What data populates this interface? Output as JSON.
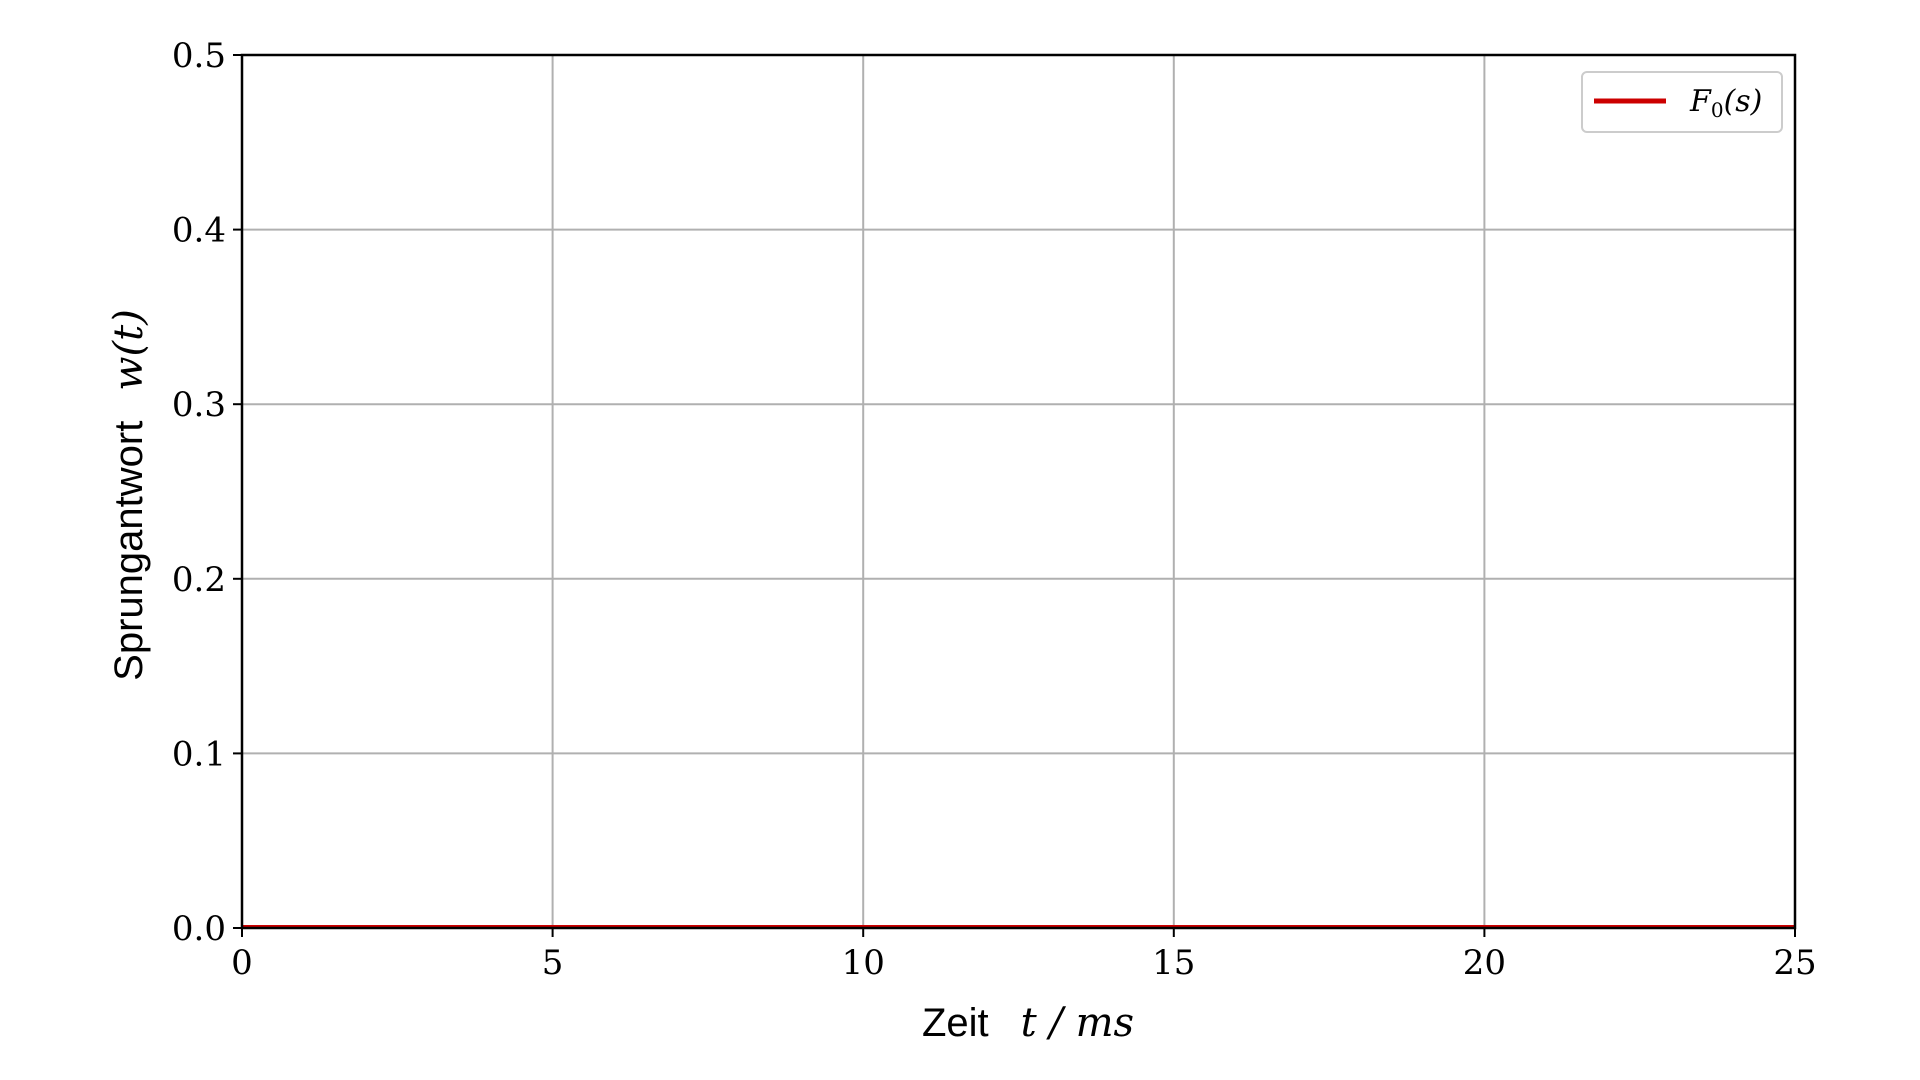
{
  "chart_data": {
    "type": "line",
    "title": "",
    "xlabel": {
      "word": "Zeit",
      "math": "t / ms"
    },
    "ylabel": {
      "word": "Sprungantwort",
      "math": "w(t)"
    },
    "xlim": [
      0,
      25
    ],
    "ylim": [
      0,
      0.5
    ],
    "xticks": [
      0,
      5,
      10,
      15,
      20,
      25
    ],
    "xtick_labels": [
      "0",
      "5",
      "10",
      "15",
      "20",
      "25"
    ],
    "yticks": [
      0,
      0.1,
      0.2,
      0.3,
      0.4,
      0.5
    ],
    "ytick_labels": [
      "0.0",
      "0.1",
      "0.2",
      "0.3",
      "0.4",
      "0.5"
    ],
    "grid": true,
    "legend_position": "top-right",
    "series": [
      {
        "name": "F0(s)",
        "legend": {
          "main": "F",
          "sub": "0",
          "rest": "(s)"
        },
        "color": "#cc0000",
        "x": [
          0,
          5,
          10,
          15,
          20,
          25
        ],
        "y": [
          0,
          0,
          0,
          0,
          0,
          0
        ]
      }
    ]
  }
}
